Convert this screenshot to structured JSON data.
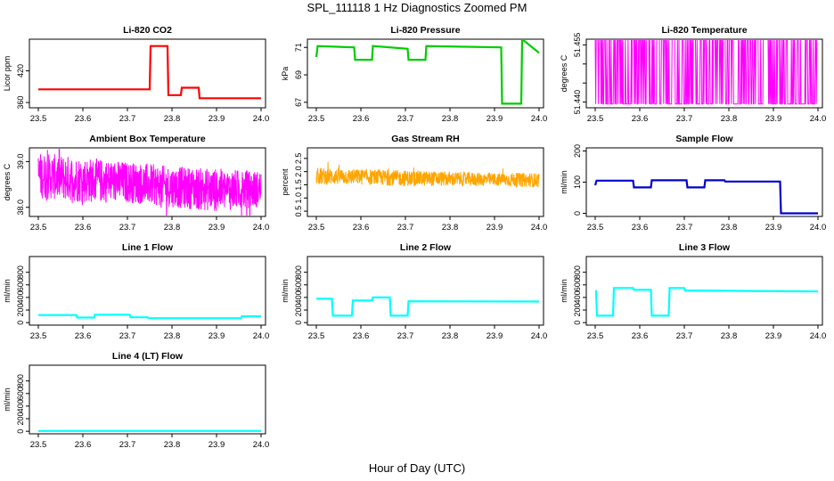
{
  "figure": {
    "title": "SPL_111118  1 Hz Diagnostics Zoomed PM",
    "xlabel": "Hour of Day (UTC)"
  },
  "chart_data": [
    {
      "type": "line",
      "title": "Li-820 CO2",
      "ylabel": "Licor ppm",
      "xlim": [
        23.48,
        24.01
      ],
      "ylim": [
        350,
        480
      ],
      "x_ticks": [
        "23.5",
        "23.6",
        "23.7",
        "23.8",
        "23.9",
        "24.0"
      ],
      "y_ticks": [
        {
          "value": 360,
          "label": "360"
        },
        {
          "value": 420,
          "label": "420"
        }
      ],
      "color": "#ff0000",
      "series": [
        {
          "x": [
            23.5,
            23.75,
            23.752,
            23.79,
            23.792,
            23.82,
            23.822,
            23.86,
            23.862,
            24.0
          ],
          "y": [
            385,
            385,
            467,
            467,
            374,
            374,
            388,
            388,
            368,
            368
          ]
        }
      ]
    },
    {
      "type": "line",
      "title": "Li-820 Pressure",
      "ylabel": "kPa",
      "xlim": [
        23.48,
        24.01
      ],
      "ylim": [
        66.6,
        71.6
      ],
      "x_ticks": [
        "23.5",
        "23.6",
        "23.7",
        "23.8",
        "23.9",
        "24.0"
      ],
      "y_ticks": [
        {
          "value": 67,
          "label": "67"
        },
        {
          "value": 69,
          "label": "69"
        },
        {
          "value": 71,
          "label": "71"
        }
      ],
      "color": "#00cc00",
      "series": [
        {
          "x": [
            23.5,
            23.503,
            23.585,
            23.587,
            23.625,
            23.627,
            23.705,
            23.707,
            23.745,
            23.747,
            23.915,
            23.917,
            23.96,
            23.962,
            24.0
          ],
          "y": [
            70.3,
            71.1,
            71.0,
            70.1,
            70.1,
            71.1,
            70.9,
            70.1,
            70.1,
            71.1,
            71.0,
            66.9,
            66.9,
            71.6,
            70.6
          ]
        }
      ]
    },
    {
      "type": "line",
      "title": "Li-820 Temperature",
      "ylabel": "degrees C",
      "xlim": [
        23.48,
        24.01
      ],
      "ylim": [
        51.4385,
        51.4565
      ],
      "x_ticks": [
        "23.5",
        "23.6",
        "23.7",
        "23.8",
        "23.9",
        "24.0"
      ],
      "y_ticks": [
        {
          "value": 51.44,
          "label": "51.440"
        },
        {
          "value": 51.445,
          "label": ""
        },
        {
          "value": 51.45,
          "label": ""
        },
        {
          "value": 51.455,
          "label": "51.455"
        }
      ],
      "color": "#ff00ff",
      "noise": {
        "low": 51.4395,
        "high": 51.4565,
        "from": 23.5,
        "to": 24.0
      }
    },
    {
      "type": "line",
      "title": "Ambient Box Temperature",
      "ylabel": "degrees C",
      "xlim": [
        23.48,
        24.01
      ],
      "ylim": [
        37.8,
        39.3
      ],
      "x_ticks": [
        "23.5",
        "23.6",
        "23.7",
        "23.8",
        "23.9",
        "24.0"
      ],
      "y_ticks": [
        {
          "value": 38.0,
          "label": "38.0"
        },
        {
          "value": 39.0,
          "label": "39.0"
        }
      ],
      "color": "#ff00ff",
      "band": {
        "x": [
          23.5,
          23.6,
          23.7,
          23.8,
          23.9,
          24.0
        ],
        "low": [
          38.2,
          38.1,
          38.1,
          38.0,
          37.9,
          38.0
        ],
        "high": [
          39.2,
          39.1,
          39.0,
          38.9,
          38.85,
          38.8
        ]
      }
    },
    {
      "type": "line",
      "title": "Gas Stream RH",
      "ylabel": "percent",
      "xlim": [
        23.48,
        24.01
      ],
      "ylim": [
        0.3,
        2.9
      ],
      "x_ticks": [
        "23.5",
        "23.6",
        "23.7",
        "23.8",
        "23.9",
        "24.0"
      ],
      "y_ticks": [
        {
          "value": 0.5,
          "label": "0.5"
        },
        {
          "value": 1.0,
          "label": "1.0"
        },
        {
          "value": 1.5,
          "label": "1.5"
        },
        {
          "value": 2.0,
          "label": "2.0"
        },
        {
          "value": 2.5,
          "label": "2.5"
        }
      ],
      "color": "#ffa500",
      "band": {
        "x": [
          23.5,
          23.6,
          23.7,
          23.8,
          23.9,
          24.0
        ],
        "low": [
          1.5,
          1.5,
          1.45,
          1.45,
          1.45,
          1.4
        ],
        "high": [
          2.15,
          2.1,
          2.05,
          2.0,
          1.95,
          1.95
        ]
      }
    },
    {
      "type": "line",
      "title": "Sample Flow",
      "ylabel": "ml/min",
      "xlim": [
        23.48,
        24.01
      ],
      "ylim": [
        -10,
        210
      ],
      "x_ticks": [
        "23.5",
        "23.6",
        "23.7",
        "23.8",
        "23.9",
        "24.0"
      ],
      "y_ticks": [
        {
          "value": 0,
          "label": "0"
        },
        {
          "value": 100,
          "label": "100"
        },
        {
          "value": 200,
          "label": "200"
        }
      ],
      "color": "#0000cc",
      "series": [
        {
          "x": [
            23.5,
            23.503,
            23.585,
            23.587,
            23.625,
            23.627,
            23.705,
            23.707,
            23.745,
            23.747,
            23.79,
            23.792,
            23.915,
            23.917,
            24.0
          ],
          "y": [
            90,
            105,
            105,
            83,
            83,
            106,
            106,
            83,
            83,
            106,
            106,
            102,
            102,
            0,
            0
          ]
        }
      ]
    },
    {
      "type": "line",
      "title": "Line 1 Flow",
      "ylabel": "ml/min",
      "xlim": [
        23.48,
        24.01
      ],
      "ylim": [
        -40,
        1050
      ],
      "x_ticks": [
        "23.5",
        "23.6",
        "23.7",
        "23.8",
        "23.9",
        "24.0"
      ],
      "y_ticks": [
        {
          "value": 0,
          "label": "0"
        },
        {
          "value": 200,
          "label": "200"
        },
        {
          "value": 400,
          "label": "400"
        },
        {
          "value": 600,
          "label": "600"
        },
        {
          "value": 800,
          "label": "800"
        }
      ],
      "color": "#00ffff",
      "series": [
        {
          "x": [
            23.5,
            23.585,
            23.587,
            23.625,
            23.627,
            23.705,
            23.707,
            23.745,
            23.747,
            23.955,
            23.957,
            24.0
          ],
          "y": [
            120,
            120,
            80,
            80,
            125,
            125,
            85,
            85,
            70,
            70,
            100,
            100
          ]
        }
      ]
    },
    {
      "type": "line",
      "title": "Line 2 Flow",
      "ylabel": "ml/min",
      "xlim": [
        23.48,
        24.01
      ],
      "ylim": [
        -40,
        1050
      ],
      "x_ticks": [
        "23.5",
        "23.6",
        "23.7",
        "23.8",
        "23.9",
        "24.0"
      ],
      "y_ticks": [
        {
          "value": 0,
          "label": "0"
        },
        {
          "value": 200,
          "label": "200"
        },
        {
          "value": 400,
          "label": "400"
        },
        {
          "value": 600,
          "label": "600"
        },
        {
          "value": 800,
          "label": "800"
        }
      ],
      "color": "#00ffff",
      "series": [
        {
          "x": [
            23.5,
            23.535,
            23.537,
            23.58,
            23.582,
            23.625,
            23.627,
            23.665,
            23.667,
            23.705,
            23.707,
            24.0
          ],
          "y": [
            380,
            380,
            110,
            110,
            350,
            350,
            400,
            400,
            110,
            110,
            340,
            335
          ]
        }
      ]
    },
    {
      "type": "line",
      "title": "Line 3 Flow",
      "ylabel": "ml/min",
      "xlim": [
        23.48,
        24.01
      ],
      "ylim": [
        -40,
        1050
      ],
      "x_ticks": [
        "23.5",
        "23.6",
        "23.7",
        "23.8",
        "23.9",
        "24.0"
      ],
      "y_ticks": [
        {
          "value": 0,
          "label": "0"
        },
        {
          "value": 200,
          "label": "200"
        },
        {
          "value": 400,
          "label": "400"
        },
        {
          "value": 600,
          "label": "600"
        },
        {
          "value": 800,
          "label": "800"
        }
      ],
      "color": "#00ffff",
      "series": [
        {
          "x": [
            23.5,
            23.502,
            23.504,
            23.54,
            23.542,
            23.585,
            23.587,
            23.625,
            23.627,
            23.665,
            23.667,
            23.7,
            23.702,
            24.0
          ],
          "y": [
            500,
            500,
            110,
            110,
            550,
            550,
            520,
            520,
            110,
            110,
            550,
            550,
            510,
            495
          ]
        }
      ]
    },
    {
      "type": "line",
      "title": "Line 4 (LT) Flow",
      "ylabel": "ml/min",
      "xlim": [
        23.48,
        24.01
      ],
      "ylim": [
        -40,
        1050
      ],
      "x_ticks": [
        "23.5",
        "23.6",
        "23.7",
        "23.8",
        "23.9",
        "24.0"
      ],
      "y_ticks": [
        {
          "value": 0,
          "label": "0"
        },
        {
          "value": 200,
          "label": "200"
        },
        {
          "value": 400,
          "label": "400"
        },
        {
          "value": 600,
          "label": "600"
        },
        {
          "value": 800,
          "label": "800"
        }
      ],
      "color": "#00ffff",
      "series": [
        {
          "x": [
            23.5,
            24.0
          ],
          "y": [
            5,
            5
          ]
        }
      ]
    }
  ]
}
